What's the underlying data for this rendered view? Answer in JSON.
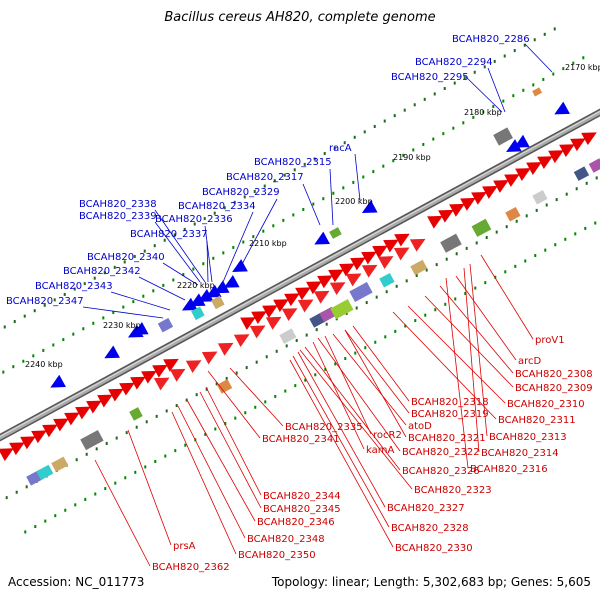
{
  "title": "Bacillus cereus AH820, complete genome",
  "footer": {
    "accession": "Accession: NC_011773",
    "stats": "Topology: linear; Length: 5,302,683 bp; Genes: 5,605"
  },
  "colors": {
    "upper_label": "#0000cc",
    "lower_label": "#cc0000",
    "upper_feature": "#0000ee",
    "lower_feature": "#ee0000",
    "backbone": "#808080",
    "tick": "#008800"
  },
  "kbp_ticks": [
    "2170 kbp",
    "2180 kbp",
    "2190 kbp",
    "2200 kbp",
    "2210 kbp",
    "2220 kbp",
    "2230 kbp",
    "2240 kbp"
  ],
  "upper_genes": [
    "BCAH820_2286",
    "BCAH820_2294",
    "BCAH820_2295",
    "racA",
    "BCAH820_2315",
    "BCAH820_2317",
    "BCAH820_2329",
    "BCAH820_2334",
    "BCAH820_2338",
    "BCAH820_2339",
    "BCAH820_2336",
    "BCAH820_2337",
    "BCAH820_2340",
    "BCAH820_2342",
    "BCAH820_2343",
    "BCAH820_2347"
  ],
  "lower_genes": [
    "proV1",
    "arcD",
    "BCAH820_2308",
    "BCAH820_2309",
    "BCAH820_2310",
    "BCAH820_2311",
    "BCAH820_2318",
    "BCAH820_2319",
    "BCAH820_2313",
    "atoD",
    "BCAH820_2335",
    "rocR2",
    "BCAH820_2321",
    "BCAH820_2314",
    "BCAH820_2341",
    "BCAH820_2322",
    "kamA",
    "BCAH820_2316",
    "BCAH820_2326",
    "BCAH820_2323",
    "BCAH820_2344",
    "BCAH820_2345",
    "BCAH820_2327",
    "BCAH820_2346",
    "BCAH820_2328",
    "BCAH820_2348",
    "prsA",
    "BCAH820_2330",
    "BCAH820_2350",
    "BCAH820_2362"
  ]
}
